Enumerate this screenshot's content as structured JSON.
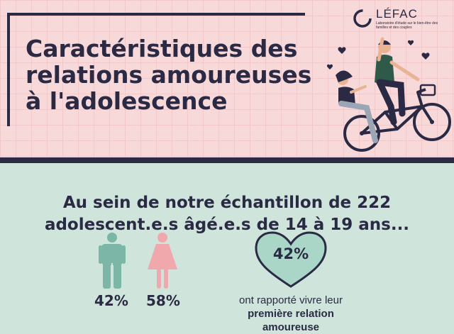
{
  "header": {
    "title": "Caractéristiques des\nrelations amoureuses\nà l'adolescence"
  },
  "logo": {
    "name": "LÉFAC",
    "subtitle": "Laboratoire d'étude sur le bien-être des familles et des couples"
  },
  "section": {
    "heading": "Au sein de notre échantillon de 222\nadolescent.e.s âgé.e.s de 14 à 19 ans..."
  },
  "stats": {
    "male_pct": "42%",
    "female_pct": "58%",
    "heart_pct": "42%",
    "caption_line1": "ont rapporté vivre leur",
    "caption_bold1": "première relation",
    "caption_bold2": "amoureuse"
  },
  "colors": {
    "navy": "#2b2a44",
    "pink_bg": "#f7d9da",
    "mint_bg": "#cfe5dc",
    "male": "#7bb6a6",
    "female": "#f0a8ad",
    "heart": "#a9d6c6"
  }
}
